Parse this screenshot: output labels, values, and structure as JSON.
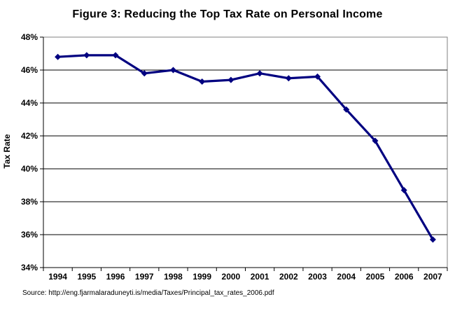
{
  "title": "Figure 3: Reducing the Top Tax Rate on Personal Income",
  "y_axis_title": "Tax Rate",
  "source_note": "Source: http://eng.fjarmalaraduneyti.is/media/Taxes/Principal_tax_rates_2006.pdf",
  "colors": {
    "line": "#000080",
    "marker": "#000080",
    "gridline": "#000000",
    "axis": "#000000",
    "plot_border": "#808080",
    "text": "#000000",
    "background": "#FFFFFF"
  },
  "chart_data": {
    "type": "line",
    "title": "Figure 3: Reducing the Top Tax Rate on Personal Income",
    "xlabel": "",
    "ylabel": "Tax Rate",
    "categories": [
      "1994",
      "1995",
      "1996",
      "1997",
      "1998",
      "1999",
      "2000",
      "2001",
      "2002",
      "2003",
      "2004",
      "2005",
      "2006",
      "2007"
    ],
    "values": [
      46.8,
      46.9,
      46.9,
      45.8,
      46.0,
      45.3,
      45.4,
      45.8,
      45.5,
      45.6,
      43.6,
      41.7,
      38.7,
      35.7
    ],
    "ylim": [
      34,
      48
    ],
    "ytick_values": [
      48,
      46,
      44,
      42,
      40,
      38,
      36,
      34
    ],
    "ytick_labels": [
      "48%",
      "46%",
      "44%",
      "42%",
      "40%",
      "38%",
      "36%",
      "34%"
    ],
    "grid": true,
    "legend": "none",
    "marker": "diamond",
    "line_width": 3.2
  }
}
